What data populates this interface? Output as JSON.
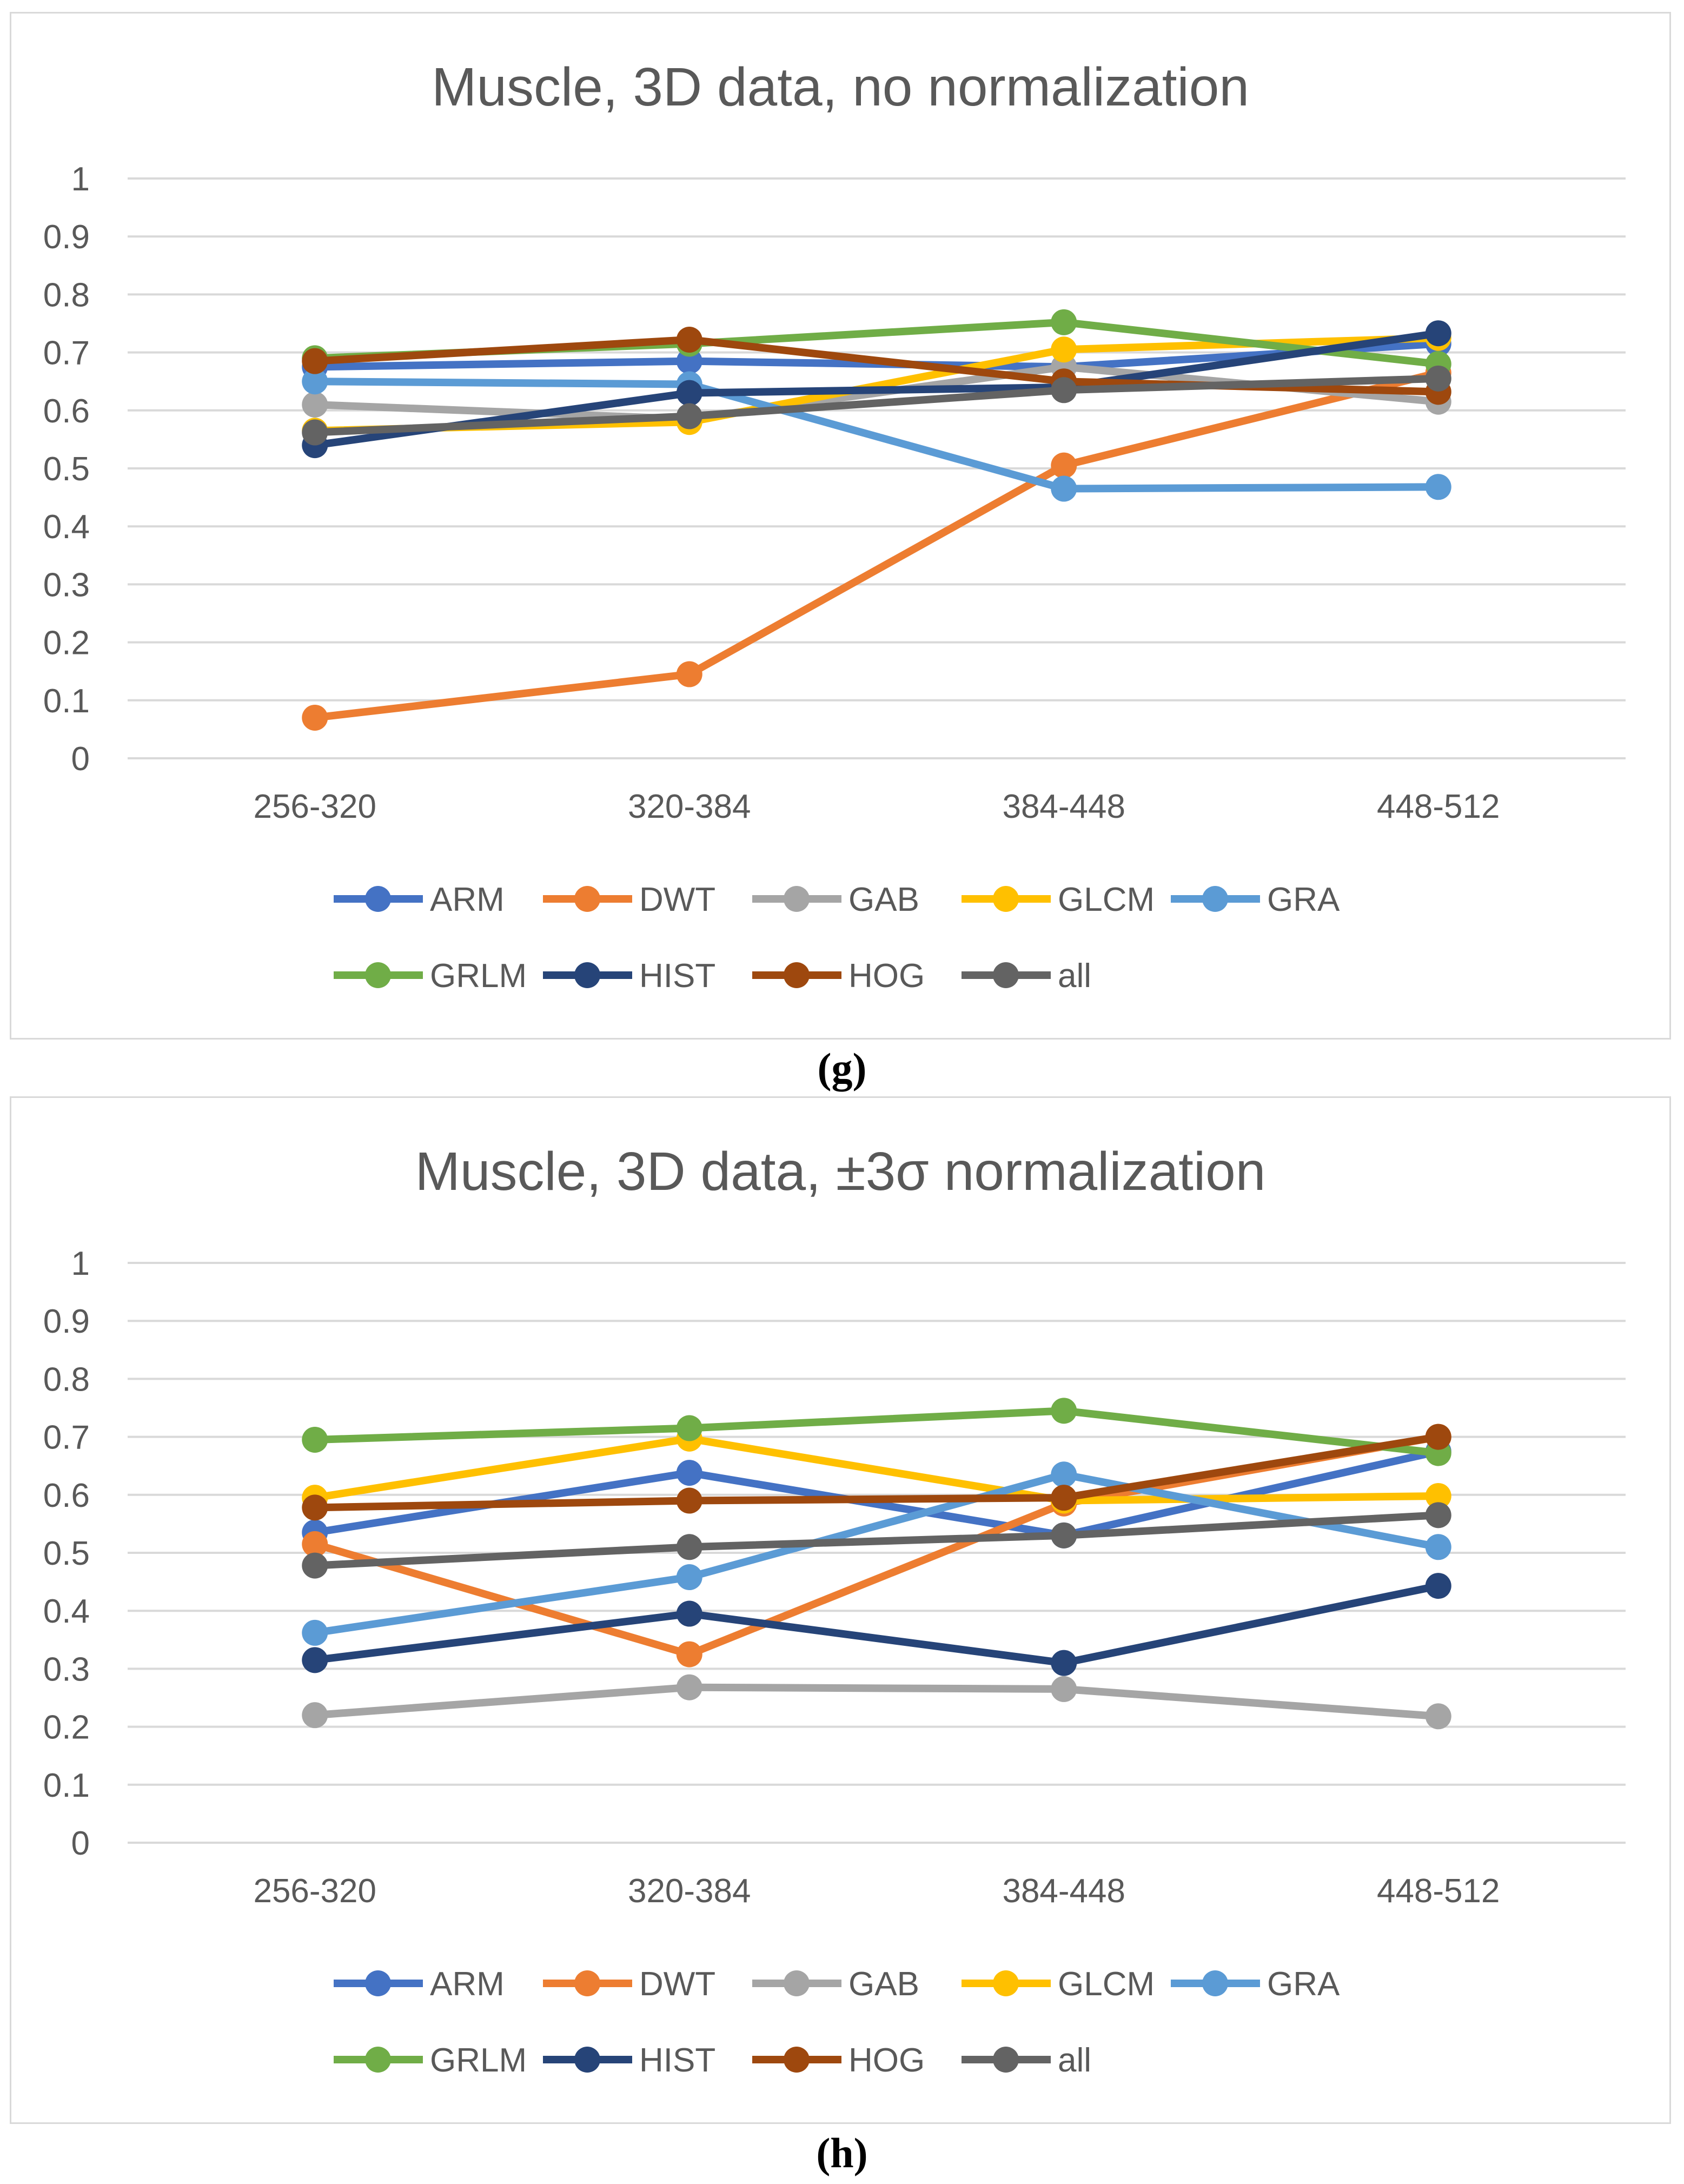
{
  "charts": [
    {
      "id": "g",
      "caption": "(g)",
      "chart_data": {
        "type": "line",
        "title": "Muscle, 3D data, no normalization",
        "categories": [
          "256-320",
          "320-384",
          "384-448",
          "448-512"
        ],
        "yticks": [
          "0",
          "0.1",
          "0.2",
          "0.3",
          "0.4",
          "0.5",
          "0.6",
          "0.7",
          "0.8",
          "0.9",
          "1"
        ],
        "ylim": [
          0,
          1
        ],
        "grid": true,
        "legend_position": "bottom",
        "series": [
          {
            "name": "ARM",
            "color": "#4472C4",
            "values": [
              0.675,
              0.685,
              0.675,
              0.715
            ]
          },
          {
            "name": "DWT",
            "color": "#ED7D31",
            "values": [
              0.07,
              0.145,
              0.505,
              0.665
            ]
          },
          {
            "name": "GAB",
            "color": "#A5A5A5",
            "values": [
              0.61,
              0.585,
              0.675,
              0.615
            ]
          },
          {
            "name": "GLCM",
            "color": "#FFC000",
            "values": [
              0.565,
              0.58,
              0.705,
              0.725
            ]
          },
          {
            "name": "GRA",
            "color": "#5B9BD5",
            "values": [
              0.65,
              0.645,
              0.465,
              0.468
            ]
          },
          {
            "name": "GRLM",
            "color": "#70AD47",
            "values": [
              0.69,
              0.715,
              0.752,
              0.68
            ]
          },
          {
            "name": "HIST",
            "color": "#264478",
            "values": [
              0.54,
              0.63,
              0.64,
              0.733
            ]
          },
          {
            "name": "HOG",
            "color": "#9E480E",
            "values": [
              0.685,
              0.722,
              0.65,
              0.632
            ]
          },
          {
            "name": "all",
            "color": "#636363",
            "values": [
              0.562,
              0.59,
              0.635,
              0.655
            ]
          }
        ]
      }
    },
    {
      "id": "h",
      "caption": "(h)",
      "chart_data": {
        "type": "line",
        "title": "Muscle, 3D data, ±3σ normalization",
        "categories": [
          "256-320",
          "320-384",
          "384-448",
          "448-512"
        ],
        "yticks": [
          "0",
          "0.1",
          "0.2",
          "0.3",
          "0.4",
          "0.5",
          "0.6",
          "0.7",
          "0.8",
          "0.9",
          "1"
        ],
        "ylim": [
          0,
          1
        ],
        "grid": true,
        "legend_position": "bottom",
        "series": [
          {
            "name": "ARM",
            "color": "#4472C4",
            "values": [
              0.535,
              0.638,
              0.53,
              0.675
            ]
          },
          {
            "name": "DWT",
            "color": "#ED7D31",
            "values": [
              0.515,
              0.325,
              0.585,
              0.7
            ]
          },
          {
            "name": "GAB",
            "color": "#A5A5A5",
            "values": [
              0.22,
              0.268,
              0.265,
              0.218
            ]
          },
          {
            "name": "GLCM",
            "color": "#FFC000",
            "values": [
              0.595,
              0.697,
              0.59,
              0.598
            ]
          },
          {
            "name": "GRA",
            "color": "#5B9BD5",
            "values": [
              0.362,
              0.458,
              0.635,
              0.51
            ]
          },
          {
            "name": "GRLM",
            "color": "#70AD47",
            "values": [
              0.695,
              0.715,
              0.745,
              0.672
            ]
          },
          {
            "name": "HIST",
            "color": "#264478",
            "values": [
              0.315,
              0.395,
              0.31,
              0.443
            ]
          },
          {
            "name": "HOG",
            "color": "#9E480E",
            "values": [
              0.578,
              0.59,
              0.595,
              0.7
            ]
          },
          {
            "name": "all",
            "color": "#636363",
            "values": [
              0.478,
              0.51,
              0.53,
              0.565
            ]
          }
        ]
      }
    }
  ]
}
